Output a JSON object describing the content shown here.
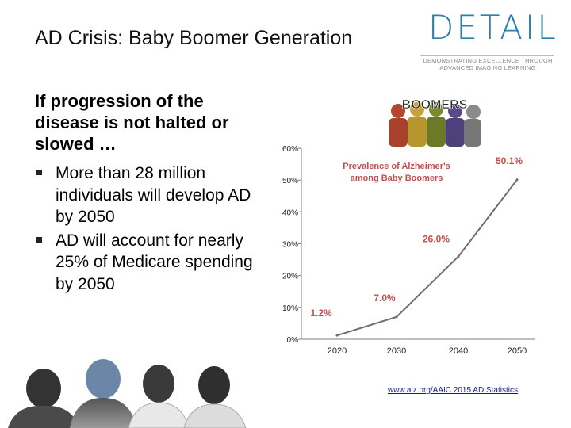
{
  "slide": {
    "title": "AD Crisis: Baby Boomer Generation",
    "intro": "If progression of the disease is not halted or slowed …",
    "bullets": [
      "More than 28 million individuals will develop AD by 2050",
      "AD will account for nearly 25% of Medicare spending by 2050"
    ],
    "source": "www.alz.org/AAIC 2015 AD Statistics"
  },
  "logo": {
    "word": "DETAIL",
    "tagline_1": "DEMONSTRATING EXCELLENCE THROUGH",
    "tagline_2": "ADVANCED IMAGING LEARNING",
    "color": "#2c7fa8"
  },
  "boomers_image": {
    "text": "BOOMERS"
  },
  "colors": {
    "line": "#6e6e6e",
    "axis": "#7f7f7f",
    "annotation": "#c0504d"
  },
  "chart_data": {
    "type": "line",
    "title": "",
    "annotation": "Prevalence of Alzheimer's among Baby Boomers",
    "categories": [
      "2020",
      "2030",
      "2040",
      "2050"
    ],
    "series": [
      {
        "values": [
          1.2,
          7.0,
          26.0,
          50.1
        ],
        "labels": [
          "1.2%",
          "7.0%",
          "26.0%",
          "50.1%"
        ]
      }
    ],
    "yticks": [
      "0%",
      "10%",
      "20%",
      "30%",
      "40%",
      "50%",
      "60%"
    ],
    "ylim": [
      0,
      60
    ],
    "xlabel": "",
    "ylabel": "",
    "grid": false
  }
}
